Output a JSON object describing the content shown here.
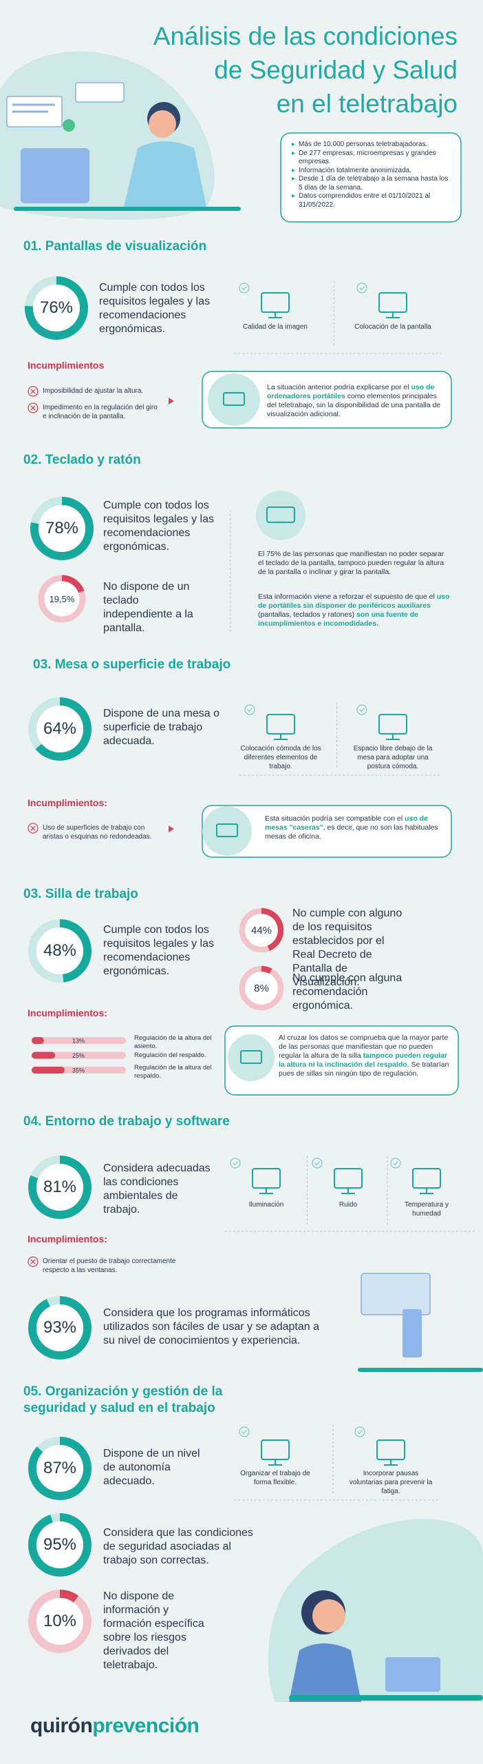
{
  "header": {
    "title": [
      "Análisis de las condiciones",
      "de Seguridad y Salud",
      "en el teletrabajo"
    ],
    "notes": [
      "Más de 10.000 personas teletrabajadoras.",
      "De 277 empresas, microempresas y grandes empresas.",
      "Información totalmente anonimizada.",
      "Desde 1 día de teletrabajo a la semana hasta los 5 días de la semana.",
      "Datos comprendidos entre el 01/10/2021 al 31/05/2022."
    ]
  },
  "sections": [
    {
      "heading": "01. Pantallas de visualización",
      "stats": [
        {
          "value": 76,
          "label": "76%",
          "color": "#17a89e",
          "track_color": "#c9e8e6",
          "text": "Cumple con todos los requisitos legales y las recomendaciones ergonómicas."
        }
      ],
      "features": [
        "Calidad de la imagen",
        "Colocación de la pantalla"
      ],
      "issues_title": "Incumplimientos",
      "issues": [
        "Imposibilidad de ajustar la altura.",
        "Impedimento en la regulación del giro e inclinación de la pantalla."
      ],
      "notes": [
        [
          "La situación anterior podría explicarse por el ",
          "uso de ordenadores portátiles",
          " como elementos principales del teletrabajo, sin la disponibilidad de una pantalla de visualización adicional."
        ]
      ]
    },
    {
      "heading": "02. Teclado y ratón",
      "stats": [
        {
          "value": 78,
          "label": "78%",
          "color": "#17a89e",
          "track_color": "#c9e8e6",
          "text": "Cumple con todos los requisitos legales y las recomendaciones ergonómicas."
        },
        {
          "value": 19.5,
          "label": "19,5%",
          "color": "#d9455b",
          "track_color": "#f3c4cb",
          "text": "No dispone de un teclado independiente a la pantalla."
        }
      ],
      "notes": [
        [
          "El 75% de las personas que manifiestan no poder separar el teclado de la pantalla, tampoco pueden regular la altura de la pantalla o inclinar y girar la pantalla."
        ],
        [
          "Esta información viene a reforzar el supuesto de que el ",
          "uso de portátiles sin disponer de periféricos auxiliares",
          " (pantallas, teclados y ratones) ",
          "son una fuente de incumplimientos e incomodidades."
        ]
      ]
    },
    {
      "heading": "03. Mesa o superficie de trabajo",
      "stats": [
        {
          "value": 64,
          "label": "64%",
          "color": "#17a89e",
          "track_color": "#c9e8e6",
          "text": "Dispone de una mesa o superficie de trabajo adecuada."
        }
      ],
      "features": [
        "Colocación cómoda de los diferentes elementos de trabajo.",
        "Espacio libre debajo de la mesa para adoptar una postura cómoda."
      ],
      "issues_title": "Incumplimientos:",
      "issues": [
        "Uso de superficies de trabajo con aristas o esquinas no redondeadas."
      ],
      "notes": [
        [
          "Esta situación podría ser compatible con el ",
          "uso de mesas \"caseras\"",
          ", es decir, que no son las habituales mesas de oficina."
        ]
      ]
    },
    {
      "heading": "03. Silla de trabajo",
      "stats": [
        {
          "value": 48,
          "label": "48%",
          "color": "#17a89e",
          "track_color": "#c9e8e6",
          "text": "Cumple con todos los requisitos legales y las recomendaciones ergonómicas."
        },
        {
          "value": 44,
          "label": "44%",
          "color": "#d9455b",
          "track_color": "#f3c4cb",
          "text": "No cumple con alguno de los requisitos establecidos por el Real Decreto de Pantalla de Visualización."
        },
        {
          "value": 8,
          "label": "8%",
          "color": "#d9455b",
          "track_color": "#f3c4cb",
          "text": "No cumple con alguna recomendación ergonómica."
        }
      ],
      "issues_title": "Incumplimientos:",
      "bars": [
        {
          "value": 13,
          "label": "13%",
          "text": "Regulación de la altura del asiento."
        },
        {
          "value": 25,
          "label": "25%",
          "text": "Regulación del respaldo."
        },
        {
          "value": 35,
          "label": "35%",
          "text": "Regulación de la altura del respaldo."
        }
      ],
      "bar_color": "#d9455b",
      "bar_track_color": "#f3c4cb",
      "notes": [
        [
          "Al cruzar los datos se comprueba que la mayor parte de las personas que manifiestan que no pueden regular la altura de la silla ",
          "tampoco pueden regular la altura ni la inclinación del respaldo",
          ". Se tratarían pues de sillas sin ningún tipo de regulación."
        ]
      ]
    },
    {
      "heading": "04. Entorno de trabajo y software",
      "stats": [
        {
          "value": 81,
          "label": "81%",
          "color": "#17a89e",
          "track_color": "#c9e8e6",
          "text": "Considera adecuadas las condiciones ambientales de trabajo."
        },
        {
          "value": 93,
          "label": "93%",
          "color": "#17a89e",
          "track_color": "#c9e8e6",
          "text": "Considera que los programas informáticos utilizados son fáciles de usar y se adaptan a su nivel de conocimientos y experiencia."
        }
      ],
      "features": [
        "Iluminación",
        "Ruido",
        "Temperatura y humedad"
      ],
      "issues_title": "Incumplimientos:",
      "issues": [
        "Orientar el puesto de trabajo correctamente respecto a las ventanas."
      ]
    },
    {
      "heading": "05. Organización y gestión de la seguridad y salud en el trabajo",
      "stats": [
        {
          "value": 87,
          "label": "87%",
          "color": "#17a89e",
          "track_color": "#c9e8e6",
          "text": "Dispone de un nivel de autonomía adecuado."
        },
        {
          "value": 95,
          "label": "95%",
          "color": "#17a89e",
          "track_color": "#c9e8e6",
          "text": "Considera que las condiciones de seguridad asociadas al trabajo son correctas."
        },
        {
          "value": 10,
          "label": "10%",
          "color": "#d9455b",
          "track_color": "#f3c4cb",
          "text": "No dispone de información y formación específica sobre los riesgos derivados del teletrabajo."
        }
      ],
      "features": [
        "Organizar el trabajo de forma flexible.",
        "Incorporar pausas voluntarias para prevenir la fatiga."
      ]
    }
  ],
  "logo": [
    "quirón",
    "prevención"
  ]
}
